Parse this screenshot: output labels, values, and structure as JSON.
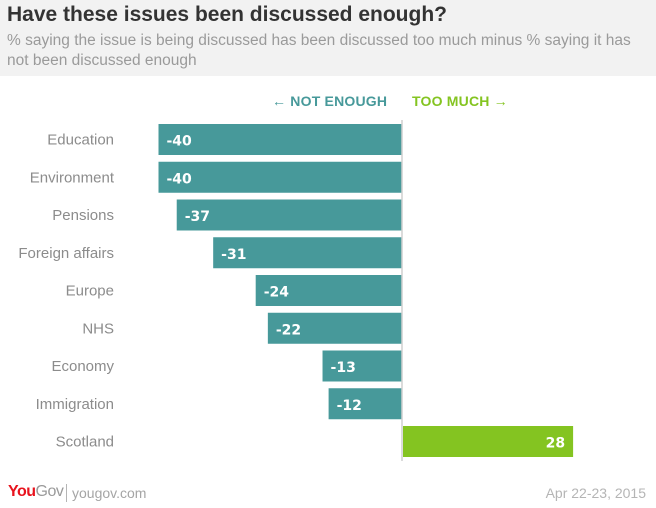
{
  "header": {
    "title": "Have these issues been discussed enough?",
    "subtitle": "% saying the issue is being discussed has been discussed too much minus % saying it has not been discussed enough"
  },
  "direction_labels": {
    "negative": "← NOT ENOUGH",
    "positive": "TOO MUCH →"
  },
  "colors": {
    "negative": "#47999a",
    "positive": "#84c421",
    "brand": "#e8131d"
  },
  "chart_data": {
    "type": "bar",
    "orientation": "horizontal",
    "title": "Have these issues been discussed enough?",
    "subtitle": "% saying the issue is being discussed has been discussed too much minus % saying it has not been discussed enough",
    "categories": [
      "Education",
      "Environment",
      "Pensions",
      "Foreign affairs",
      "Europe",
      "NHS",
      "Economy",
      "Immigration",
      "Scotland"
    ],
    "values": [
      -40,
      -40,
      -37,
      -31,
      -24,
      -22,
      -13,
      -12,
      28
    ],
    "data_labels": [
      "-40",
      "-40",
      "-37",
      "-31",
      "-24",
      "-22",
      "-13",
      "-12",
      "28"
    ],
    "xlabel": "",
    "ylabel": "",
    "xlim": [
      -40,
      40
    ],
    "grid": false,
    "zero_line": true,
    "legend": "none",
    "annotations": [
      "← NOT ENOUGH",
      "TOO MUCH →"
    ]
  },
  "footer": {
    "brand_you": "You",
    "brand_gov": "Gov",
    "url": "yougov.com",
    "date": "Apr 22-23, 2015"
  }
}
